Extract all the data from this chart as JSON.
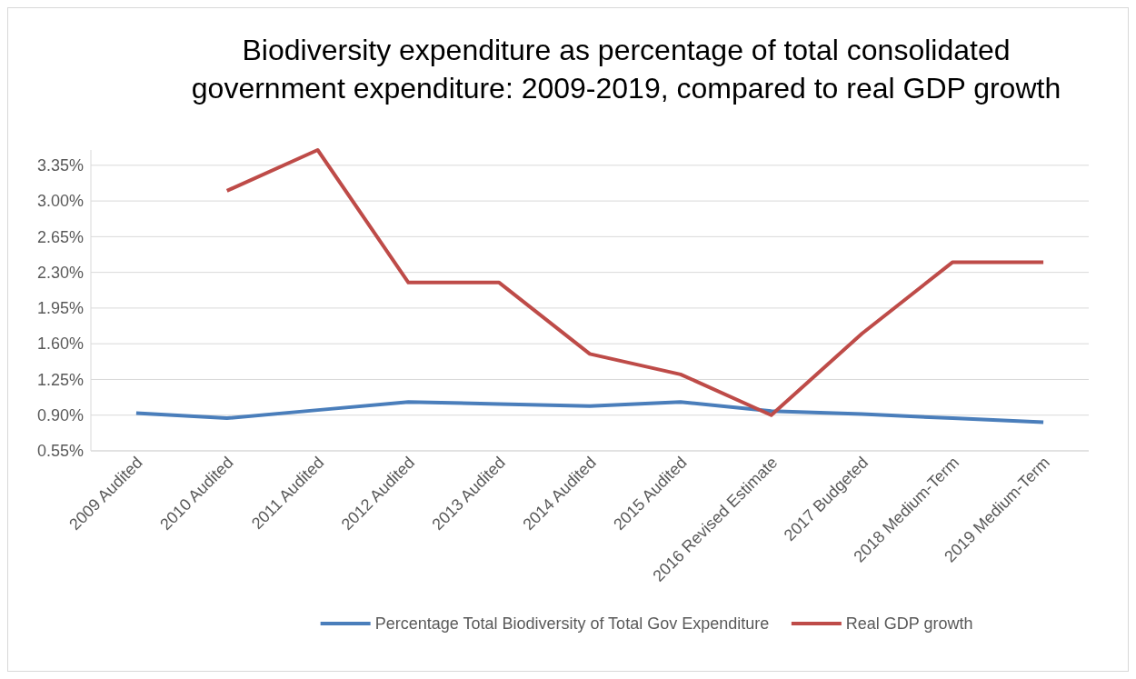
{
  "chart_data": {
    "type": "line",
    "title": "Biodiversity expenditure as percentage of total consolidated government expenditure: 2009-2019, compared to real GDP growth",
    "categories": [
      "2009 Audited",
      "2010 Audited",
      "2011 Audited",
      "2012 Audited",
      "2013 Audited",
      "2014 Audited",
      "2015 Audited",
      "2016 Revised Estimate",
      "2017 Budgeted",
      "2018 Medium-Term",
      "2019 Medium-Term"
    ],
    "series": [
      {
        "name": "Percentage Total Biodiversity of Total Gov Expenditure",
        "color": "#4a7ebb",
        "values": [
          0.92,
          0.87,
          0.95,
          1.03,
          1.01,
          0.99,
          1.03,
          0.94,
          0.91,
          0.87,
          0.83
        ]
      },
      {
        "name": "Real GDP growth",
        "color": "#be4b48",
        "values": [
          null,
          3.1,
          3.5,
          2.2,
          2.2,
          1.5,
          1.3,
          0.9,
          1.7,
          2.4,
          2.4
        ]
      }
    ],
    "ylim": [
      0.55,
      3.5
    ],
    "yticks": [
      {
        "value": 0.55,
        "label": "0.55%"
      },
      {
        "value": 0.9,
        "label": "0.90%"
      },
      {
        "value": 1.25,
        "label": "1.25%"
      },
      {
        "value": 1.6,
        "label": "1.60%"
      },
      {
        "value": 1.95,
        "label": "1.95%"
      },
      {
        "value": 2.3,
        "label": "2.30%"
      },
      {
        "value": 2.65,
        "label": "2.65%"
      },
      {
        "value": 3.0,
        "label": "3.00%"
      },
      {
        "value": 3.35,
        "label": "3.35%"
      }
    ],
    "grid": "y",
    "legend": "bottom",
    "marker": "none",
    "line_style": "solid"
  }
}
